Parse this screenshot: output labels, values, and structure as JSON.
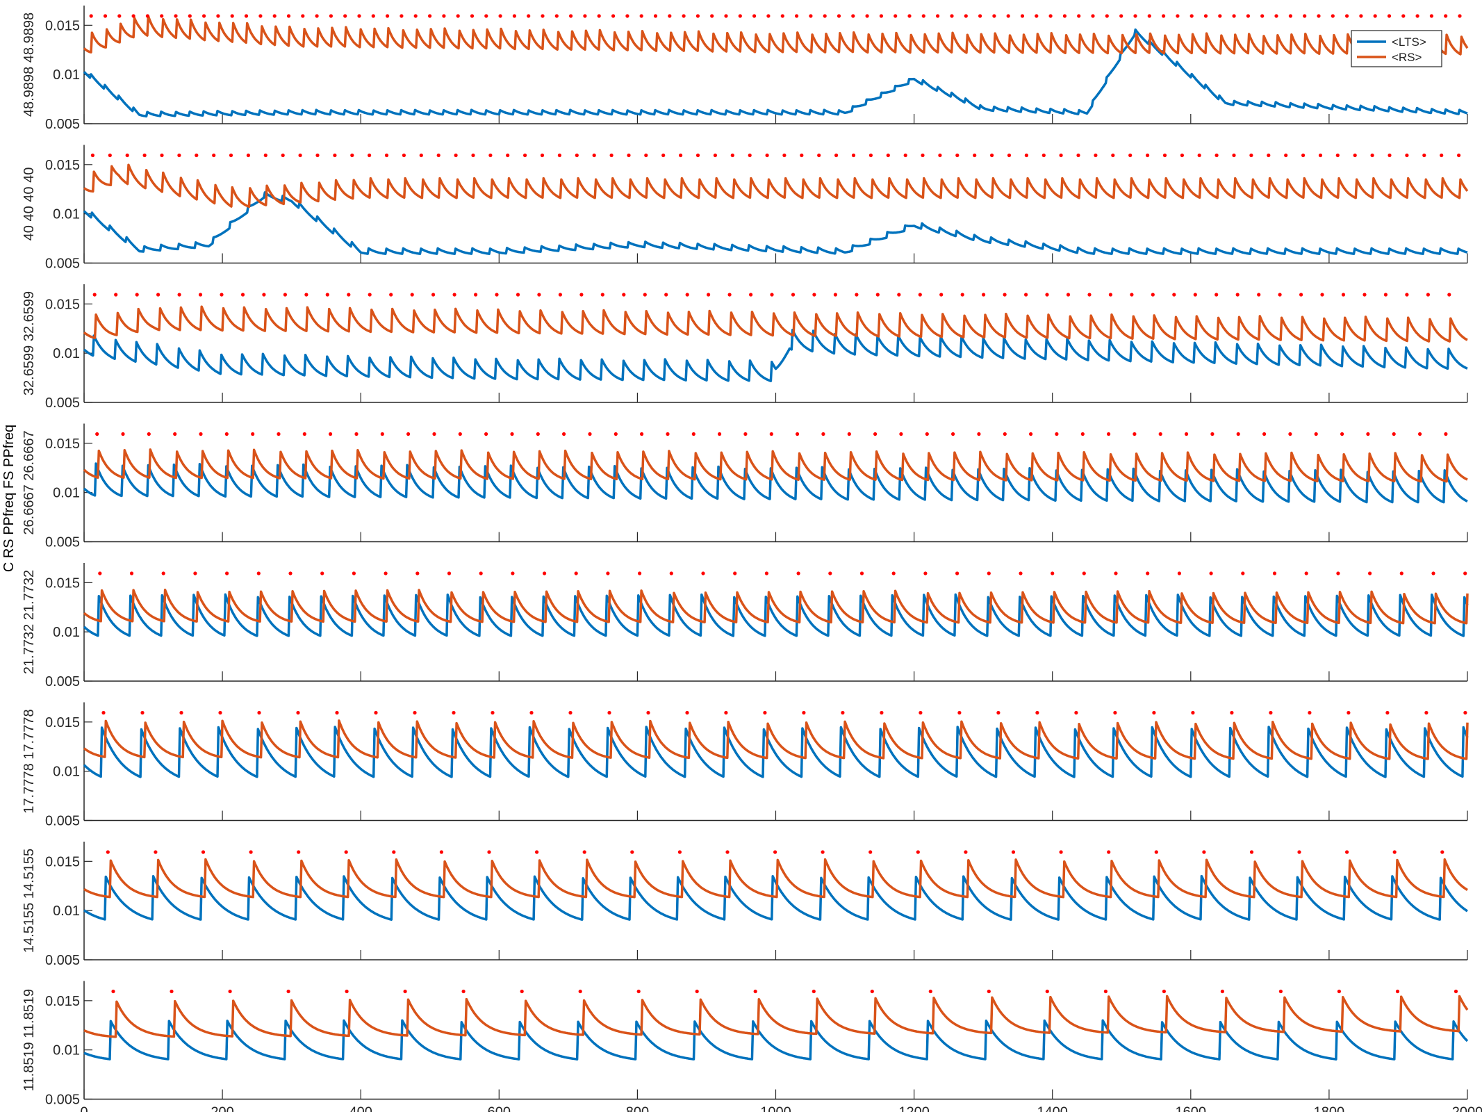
{
  "figure": {
    "y_axis_super_label": "C RS PPfreq FS PPfreq"
  },
  "colors": {
    "lts": "#0072BD",
    "rs": "#D95319",
    "pulse": "#FF0000",
    "axis": "#262626"
  },
  "legend": {
    "placement": "top-right of first panel",
    "entries": [
      "<LTS>",
      "<RS>"
    ]
  },
  "chart_data": [
    {
      "type": "line",
      "ylabel": "48.9898 48.9898",
      "pulse_period_ms": 20.4,
      "xlim": [
        0,
        2000
      ],
      "ylim": [
        0.005,
        0.017
      ],
      "yticks": [
        0.005,
        0.01,
        0.015
      ],
      "ytick_labels": [
        "0.005",
        "0.01",
        "0.015"
      ],
      "xticks": [
        0,
        200,
        400,
        600,
        800,
        1000,
        1200,
        1400,
        1600,
        1800,
        2000
      ],
      "series": [
        {
          "name": "<LTS>",
          "baseline": [
            [
              0,
              0.01
            ],
            [
              80,
              0.0056
            ],
            [
              300,
              0.0058
            ],
            [
              1100,
              0.0058
            ],
            [
              1200,
              0.0092
            ],
            [
              1300,
              0.0062
            ],
            [
              1450,
              0.0058
            ],
            [
              1520,
              0.014
            ],
            [
              1650,
              0.0068
            ],
            [
              2000,
              0.0058
            ]
          ],
          "spike_amplitude": 0.0006,
          "decay_ms": 14
        },
        {
          "name": "<RS>",
          "baseline": [
            [
              0,
              0.0115
            ],
            [
              80,
              0.0135
            ],
            [
              300,
              0.0124
            ],
            [
              1000,
              0.0118
            ],
            [
              2000,
              0.0116
            ]
          ],
          "spike_amplitude": 0.0025,
          "decay_ms": 12
        }
      ]
    },
    {
      "type": "line",
      "ylabel": "40 40 40 40",
      "pulse_period_ms": 25,
      "xlim": [
        0,
        2000
      ],
      "ylim": [
        0.005,
        0.017
      ],
      "yticks": [
        0.005,
        0.01,
        0.015
      ],
      "ytick_labels": [
        "0.005",
        "0.01",
        "0.015"
      ],
      "xticks": [
        0,
        200,
        400,
        600,
        800,
        1000,
        1200,
        1400,
        1600,
        1800,
        2000
      ],
      "series": [
        {
          "name": "<LTS>",
          "baseline": [
            [
              0,
              0.01
            ],
            [
              80,
              0.006
            ],
            [
              180,
              0.0065
            ],
            [
              260,
              0.0115
            ],
            [
              300,
              0.011
            ],
            [
              400,
              0.0058
            ],
            [
              600,
              0.0058
            ],
            [
              800,
              0.0065
            ],
            [
              1100,
              0.0058
            ],
            [
              1200,
              0.0085
            ],
            [
              1300,
              0.007
            ],
            [
              1450,
              0.0058
            ],
            [
              2000,
              0.0058
            ]
          ],
          "spike_amplitude": 0.0007,
          "decay_ms": 15
        },
        {
          "name": "<RS>",
          "baseline": [
            [
              0,
              0.0115
            ],
            [
              50,
              0.0128
            ],
            [
              150,
              0.0112
            ],
            [
              220,
              0.0102
            ],
            [
              400,
              0.0112
            ],
            [
              2000,
              0.0112
            ]
          ],
          "spike_amplitude": 0.0025,
          "decay_ms": 14
        }
      ]
    },
    {
      "type": "line",
      "ylabel": "32.6599 32.6599",
      "pulse_period_ms": 30.6,
      "xlim": [
        0,
        2000
      ],
      "ylim": [
        0.005,
        0.017
      ],
      "yticks": [
        0.005,
        0.01,
        0.015
      ],
      "ytick_labels": [
        "0.005",
        "0.01",
        "0.015"
      ],
      "xticks": [
        0,
        200,
        400,
        600,
        800,
        1000,
        1200,
        1400,
        1600,
        1800,
        2000
      ],
      "series": [
        {
          "name": "<LTS>",
          "baseline": [
            [
              0,
              0.0095
            ],
            [
              200,
              0.0075
            ],
            [
              600,
              0.007
            ],
            [
              1000,
              0.0068
            ],
            [
              1020,
              0.01
            ],
            [
              1100,
              0.0095
            ],
            [
              2000,
              0.008
            ]
          ],
          "spike_amplitude": 0.0025,
          "decay_ms": 16
        },
        {
          "name": "<RS>",
          "baseline": [
            [
              0,
              0.011
            ],
            [
              100,
              0.012
            ],
            [
              2000,
              0.0108
            ]
          ],
          "spike_amplitude": 0.0028,
          "decay_ms": 15
        }
      ]
    },
    {
      "type": "line",
      "ylabel": "26.6667 26.6667",
      "pulse_period_ms": 37.5,
      "xlim": [
        0,
        2000
      ],
      "ylim": [
        0.005,
        0.017
      ],
      "yticks": [
        0.005,
        0.01,
        0.015
      ],
      "ytick_labels": [
        "0.005",
        "0.01",
        "0.015"
      ],
      "xticks": [
        0,
        200,
        400,
        600,
        800,
        1000,
        1200,
        1400,
        1600,
        1800,
        2000
      ],
      "series": [
        {
          "name": "<LTS>",
          "baseline": [
            [
              0,
              0.0092
            ],
            [
              2000,
              0.0085
            ]
          ],
          "spike_amplitude": 0.0038,
          "decay_ms": 18
        },
        {
          "name": "<RS>",
          "baseline": [
            [
              0,
              0.0112
            ],
            [
              2000,
              0.0108
            ]
          ],
          "spike_amplitude": 0.0032,
          "decay_ms": 16
        }
      ]
    },
    {
      "type": "line",
      "ylabel": "21.7732 21.7732",
      "pulse_period_ms": 45.9,
      "xlim": [
        0,
        2000
      ],
      "ylim": [
        0.005,
        0.017
      ],
      "yticks": [
        0.005,
        0.01,
        0.015
      ],
      "ytick_labels": [
        "0.005",
        "0.01",
        "0.015"
      ],
      "xticks": [
        0,
        200,
        400,
        600,
        800,
        1000,
        1200,
        1400,
        1600,
        1800,
        2000
      ],
      "series": [
        {
          "name": "<LTS>",
          "baseline": [
            [
              0,
              0.009
            ],
            [
              2000,
              0.009
            ]
          ],
          "spike_amplitude": 0.0048,
          "decay_ms": 22
        },
        {
          "name": "<RS>",
          "baseline": [
            [
              0,
              0.0108
            ],
            [
              2000,
              0.0106
            ]
          ],
          "spike_amplitude": 0.0035,
          "decay_ms": 18
        }
      ]
    },
    {
      "type": "line",
      "ylabel": "17.7778 17.7778",
      "pulse_period_ms": 56.25,
      "xlim": [
        0,
        2000
      ],
      "ylim": [
        0.005,
        0.017
      ],
      "yticks": [
        0.005,
        0.01,
        0.015
      ],
      "ytick_labels": [
        "0.005",
        "0.01",
        "0.015"
      ],
      "xticks": [
        0,
        200,
        400,
        600,
        800,
        1000,
        1200,
        1400,
        1600,
        1800,
        2000
      ],
      "series": [
        {
          "name": "<LTS>",
          "baseline": [
            [
              0,
              0.0085
            ],
            [
              2000,
              0.0085
            ]
          ],
          "spike_amplitude": 0.006,
          "decay_ms": 30
        },
        {
          "name": "<RS>",
          "baseline": [
            [
              0,
              0.0112
            ],
            [
              2000,
              0.011
            ]
          ],
          "spike_amplitude": 0.004,
          "decay_ms": 20
        }
      ]
    },
    {
      "type": "line",
      "ylabel": "14.5155 14.5155",
      "pulse_period_ms": 68.9,
      "xlim": [
        0,
        2000
      ],
      "ylim": [
        0.005,
        0.017
      ],
      "yticks": [
        0.005,
        0.01,
        0.015
      ],
      "ytick_labels": [
        "0.005",
        "0.01",
        "0.015"
      ],
      "xticks": [
        0,
        200,
        400,
        600,
        800,
        1000,
        1200,
        1400,
        1600,
        1800,
        2000
      ],
      "series": [
        {
          "name": "<LTS>",
          "baseline": [
            [
              0,
              0.0085
            ],
            [
              2000,
              0.0085
            ]
          ],
          "spike_amplitude": 0.005,
          "decay_ms": 32
        },
        {
          "name": "<RS>",
          "baseline": [
            [
              0,
              0.0112
            ],
            [
              2000,
              0.0112
            ]
          ],
          "spike_amplitude": 0.004,
          "decay_ms": 22
        }
      ]
    },
    {
      "type": "line",
      "ylabel": "11.8519 11.8519",
      "pulse_period_ms": 84.4,
      "xlim": [
        0,
        2000
      ],
      "ylim": [
        0.005,
        0.017
      ],
      "yticks": [
        0.005,
        0.01,
        0.015
      ],
      "ytick_labels": [
        "0.005",
        "0.01",
        "0.015"
      ],
      "xticks": [
        0,
        200,
        400,
        600,
        800,
        1000,
        1200,
        1400,
        1600,
        1800,
        2000
      ],
      "xtick_labels": [
        "0",
        "200",
        "400",
        "600",
        "800",
        "1000",
        "1200",
        "1400",
        "1600",
        "1800",
        "2000"
      ],
      "series": [
        {
          "name": "<LTS>",
          "baseline": [
            [
              0,
              0.0088
            ],
            [
              2000,
              0.0088
            ]
          ],
          "spike_amplitude": 0.0042,
          "decay_ms": 30
        },
        {
          "name": "<RS>",
          "baseline": [
            [
              0,
              0.0112
            ],
            [
              2000,
              0.0118
            ]
          ],
          "spike_amplitude": 0.0038,
          "decay_ms": 24
        }
      ]
    }
  ]
}
